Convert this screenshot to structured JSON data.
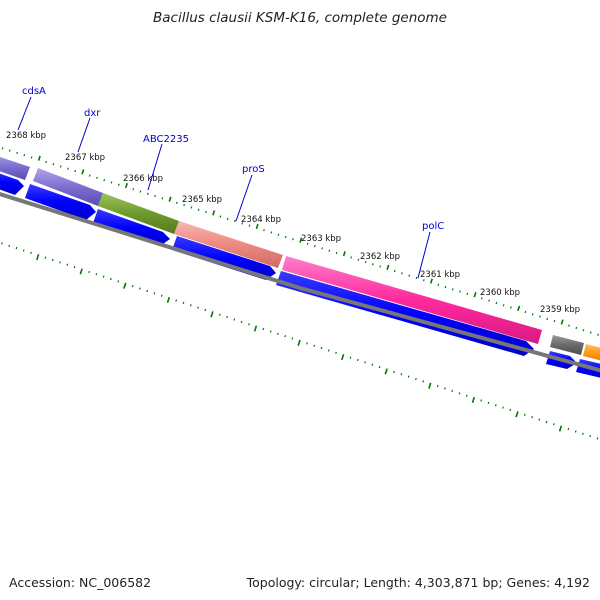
{
  "title": "Bacillus clausii KSM-K16, complete genome",
  "footer": {
    "accession": "Accession: NC_006582",
    "stats": "Topology: circular; Length: 4,303,871 bp; Genes: 4,192"
  },
  "colors": {
    "background": "#ffffff",
    "cds_arrow": "#0000ff",
    "tick_marks": "#007700",
    "backbone": "#777777",
    "gene_label": "#0000cc"
  },
  "scale_labels": [
    "2368 kbp",
    "2367 kbp",
    "2366 kbp",
    "2365 kbp",
    "2364 kbp",
    "2363 kbp",
    "2362 kbp",
    "2361 kbp",
    "2360 kbp",
    "2359 kbp"
  ],
  "gene_labels": [
    "cdsA",
    "dxr",
    "ABC2235",
    "proS",
    "polC"
  ]
}
